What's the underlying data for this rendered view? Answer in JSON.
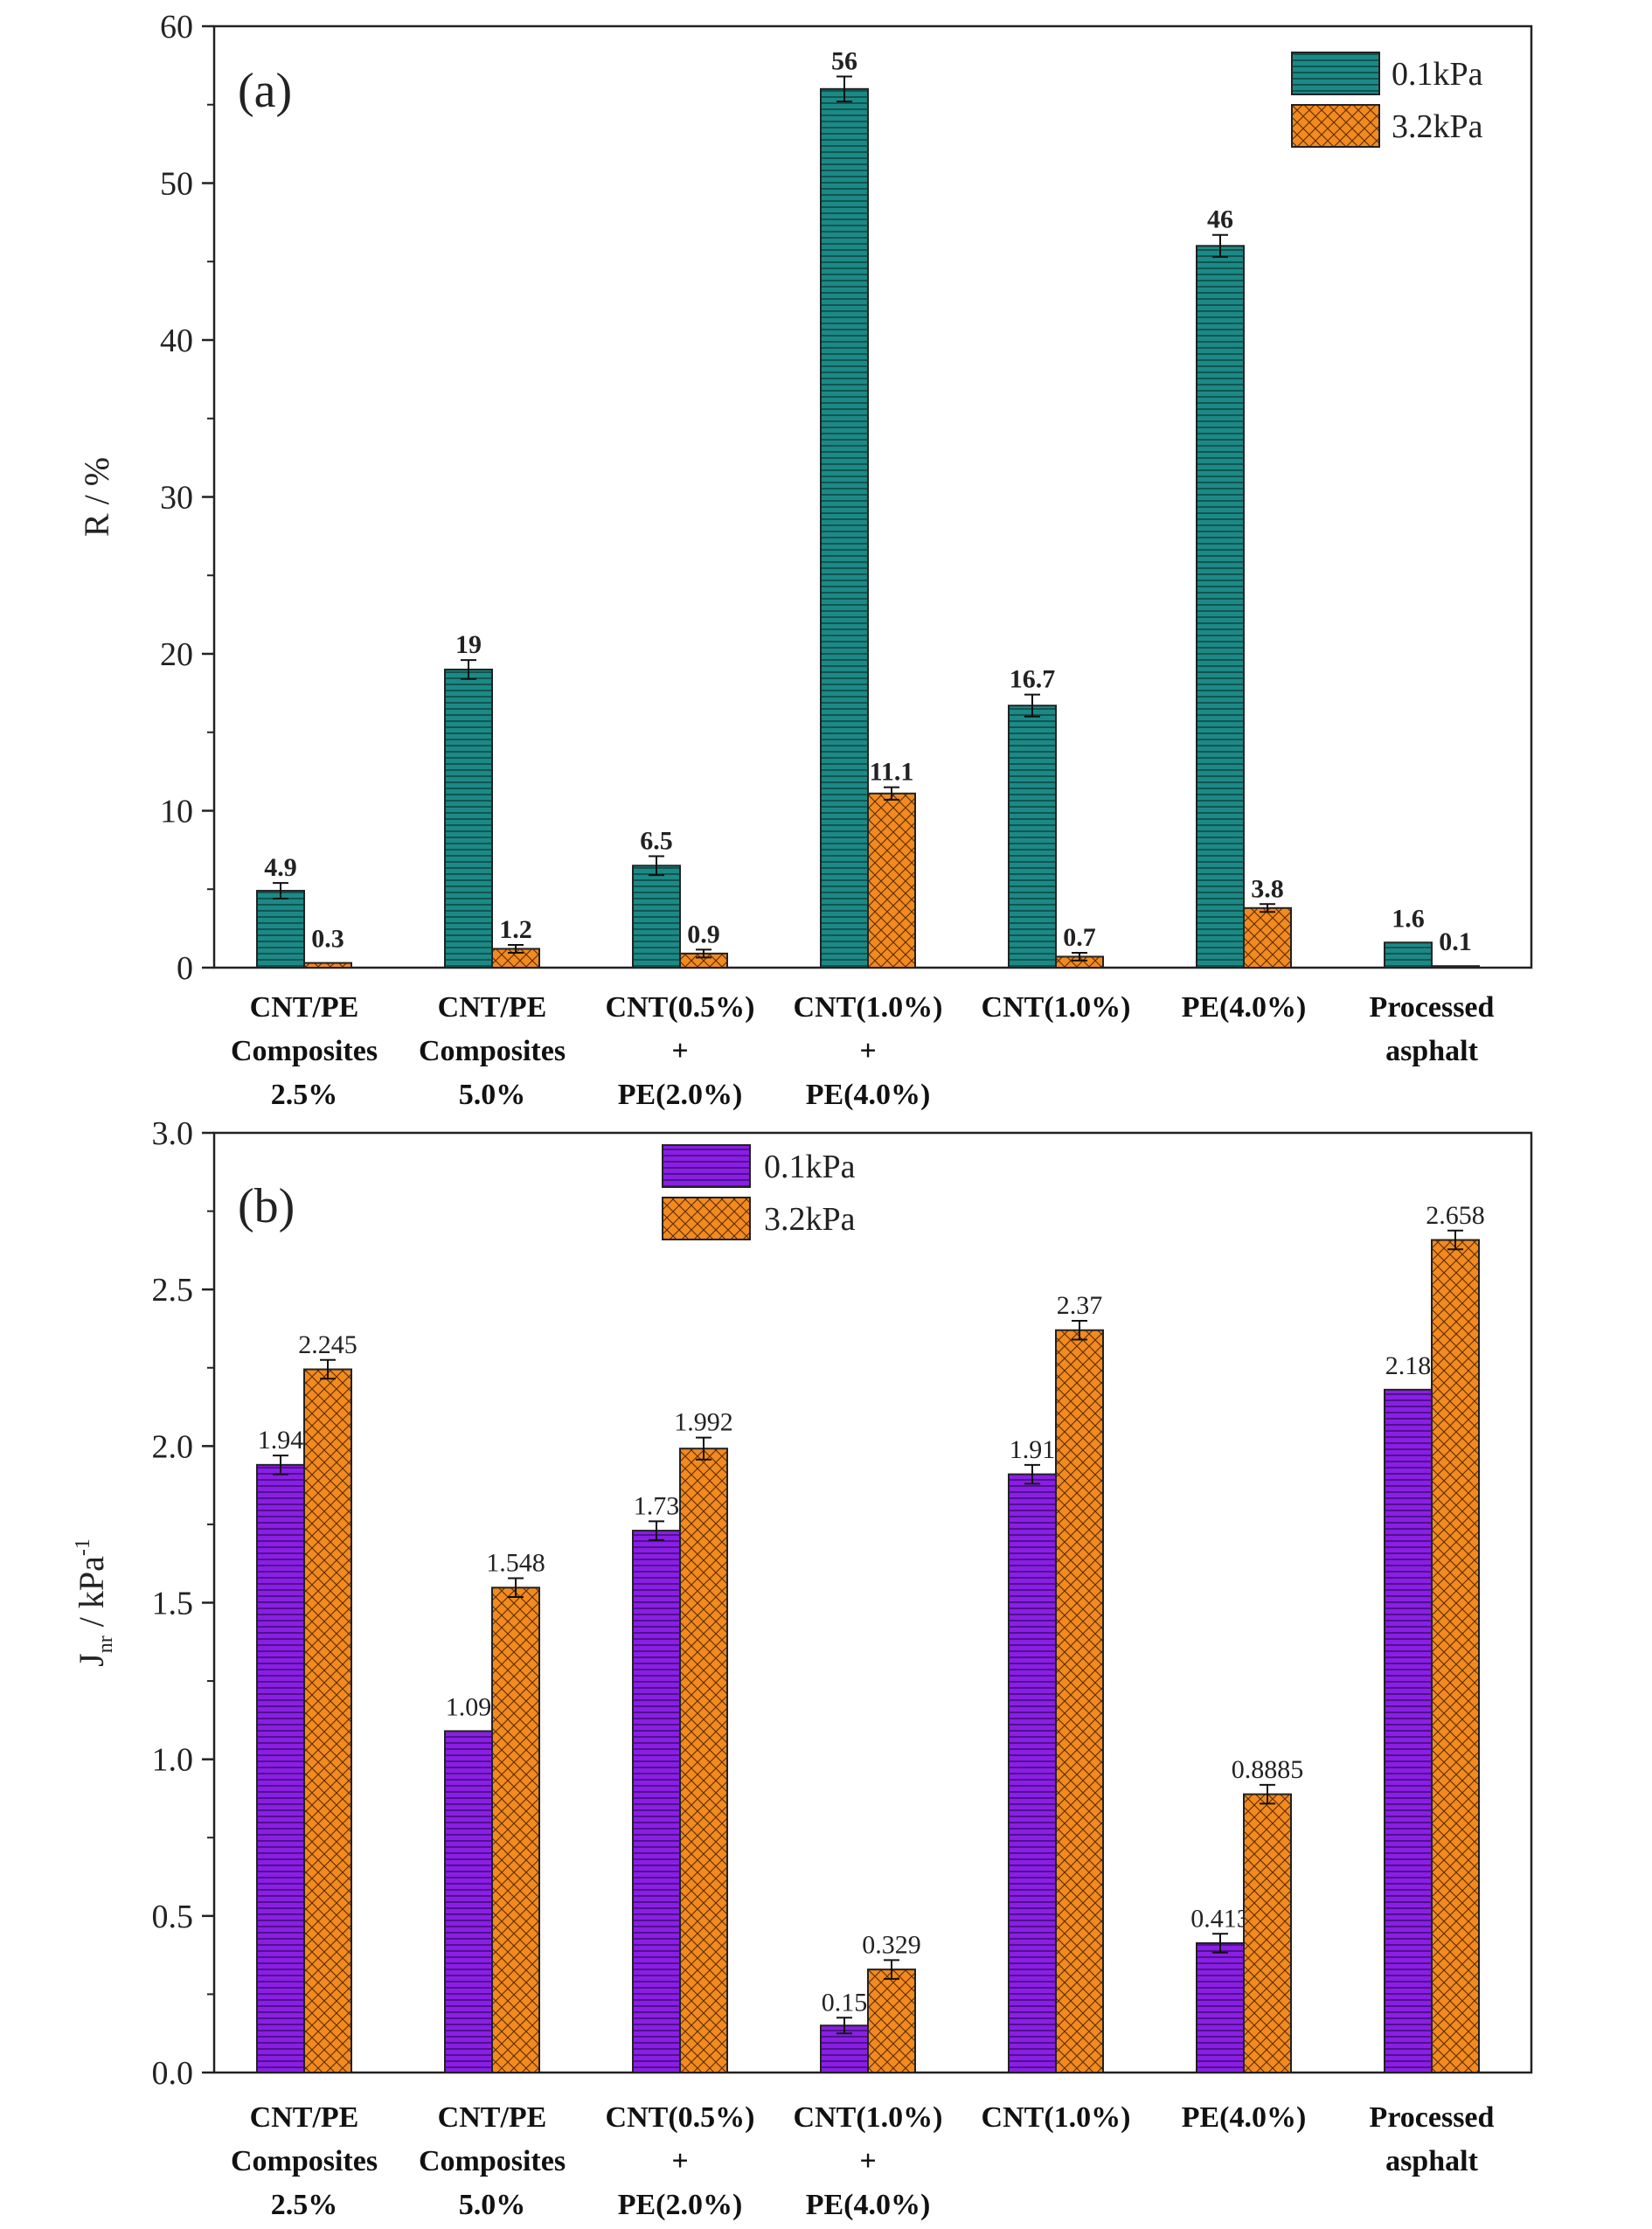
{
  "chart_data": [
    {
      "type": "bar",
      "panel_label": "(a)",
      "ylabel_main": "R / %",
      "ylabel_sub": "",
      "ylabel_sup": "",
      "ylim": [
        0,
        60
      ],
      "yticks": [
        "0",
        "10",
        "20",
        "30",
        "40",
        "50",
        "60"
      ],
      "grid": false,
      "legend_position": "top-right",
      "bold_value_labels": true,
      "categories": [
        [
          "CNT/PE",
          "Composites",
          "2.5%"
        ],
        [
          "CNT/PE",
          "Composites",
          "5.0%"
        ],
        [
          "CNT(0.5%)",
          "+",
          "PE(2.0%)"
        ],
        [
          "CNT(1.0%)",
          "+",
          "PE(4.0%)"
        ],
        [
          "CNT(1.0%)"
        ],
        [
          "PE(4.0%)"
        ],
        [
          "Processed",
          "asphalt"
        ]
      ],
      "series": [
        {
          "name": "0.1kPa",
          "color": "#1b8a86",
          "pattern": "horizontal-lines",
          "values": [
            4.9,
            19,
            6.5,
            56,
            16.7,
            46,
            1.6
          ],
          "labels": [
            "4.9",
            "19",
            "6.5",
            "56",
            "16.7",
            "46",
            "1.6"
          ],
          "error": [
            0.5,
            0.6,
            0.6,
            0.8,
            0.7,
            0.7,
            null
          ]
        },
        {
          "name": "3.2kPa",
          "color": "#f28a1e",
          "pattern": "crosshatch",
          "values": [
            0.3,
            1.2,
            0.9,
            11.1,
            0.7,
            3.8,
            0.1
          ],
          "labels": [
            "0.3",
            "1.2",
            "0.9",
            "11.1",
            "0.7",
            "3.8",
            "0.1"
          ],
          "error": [
            null,
            0.25,
            0.25,
            0.4,
            0.25,
            0.25,
            null
          ]
        }
      ]
    },
    {
      "type": "bar",
      "panel_label": "(b)",
      "ylabel_main": "J",
      "ylabel_sub": "nr",
      "ylabel_sup": "-1",
      "ylabel_tail": " / kPa",
      "ylim": [
        0,
        3
      ],
      "yticks": [
        "0.0",
        "0.5",
        "1.0",
        "1.5",
        "2.0",
        "2.5",
        "3.0"
      ],
      "grid": false,
      "legend_position": "top-center",
      "bold_value_labels": false,
      "categories": [
        [
          "CNT/PE",
          "Composites",
          "2.5%"
        ],
        [
          "CNT/PE",
          "Composites",
          "5.0%"
        ],
        [
          "CNT(0.5%)",
          "+",
          "PE(2.0%)"
        ],
        [
          "CNT(1.0%)",
          "+",
          "PE(4.0%)"
        ],
        [
          "CNT(1.0%)"
        ],
        [
          "PE(4.0%)"
        ],
        [
          "Processed",
          "asphalt"
        ]
      ],
      "series": [
        {
          "name": "0.1kPa",
          "color": "#8a1ee6",
          "pattern": "horizontal-lines",
          "values": [
            1.94,
            1.09,
            1.73,
            0.15,
            1.91,
            0.413,
            2.18
          ],
          "labels": [
            "1.94",
            "1.09",
            "1.73",
            "0.15",
            "1.91",
            "0.413",
            "2.18"
          ],
          "error": [
            0.03,
            null,
            0.03,
            0.025,
            0.03,
            0.03,
            null
          ]
        },
        {
          "name": "3.2kPa",
          "color": "#f28a1e",
          "pattern": "crosshatch",
          "values": [
            2.245,
            1.548,
            1.992,
            0.329,
            2.37,
            0.8885,
            2.658
          ],
          "labels": [
            "2.245",
            "1.548",
            "1.992",
            "0.329",
            "2.37",
            "0.8885",
            "2.658"
          ],
          "error": [
            0.03,
            0.03,
            0.035,
            0.03,
            0.03,
            0.03,
            0.03
          ]
        }
      ]
    }
  ]
}
